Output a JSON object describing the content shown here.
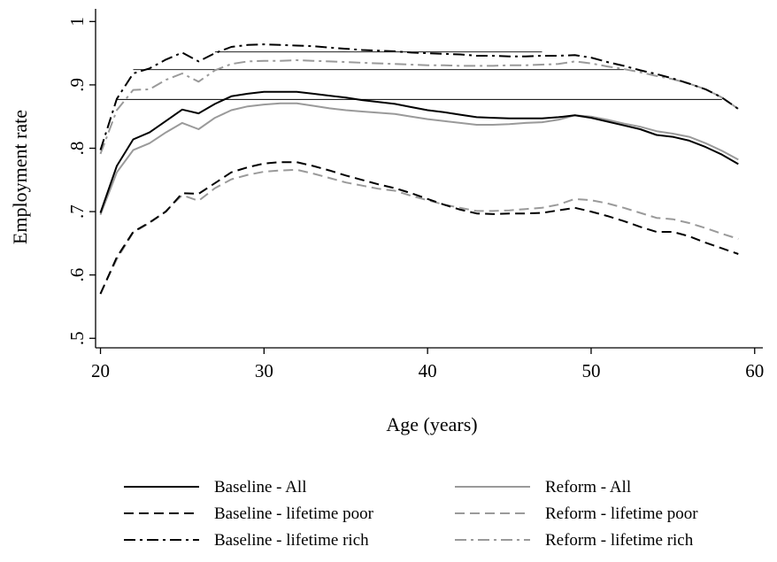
{
  "chart_data": {
    "type": "line",
    "title": "",
    "xlabel": "Age (years)",
    "ylabel": "Employment rate",
    "xlim": [
      19.7,
      60.5
    ],
    "ylim": [
      0.485,
      1.02
    ],
    "xticks": [
      20,
      30,
      40,
      50,
      60
    ],
    "xtick_labels": [
      "20",
      "30",
      "40",
      "50",
      "60"
    ],
    "yticks": [
      0.5,
      0.6,
      0.7,
      0.8,
      0.9,
      1.0
    ],
    "ytick_labels": [
      ".5",
      ".6",
      ".7",
      ".8",
      ".9",
      "1"
    ],
    "grid": false,
    "legend_position": "bottom",
    "x": [
      20,
      21,
      22,
      23,
      24,
      25,
      26,
      27,
      28,
      29,
      30,
      31,
      32,
      33,
      34,
      35,
      36,
      37,
      38,
      39,
      40,
      41,
      42,
      43,
      44,
      45,
      46,
      47,
      48,
      49,
      50,
      51,
      52,
      53,
      54,
      55,
      56,
      57,
      58,
      59
    ],
    "series": [
      {
        "name": "Baseline - All",
        "color": "#000000",
        "dash": "solid",
        "values": [
          0.698,
          0.772,
          0.814,
          0.825,
          0.843,
          0.861,
          0.855,
          0.87,
          0.882,
          0.886,
          0.889,
          0.889,
          0.889,
          0.886,
          0.883,
          0.88,
          0.876,
          0.873,
          0.87,
          0.865,
          0.86,
          0.857,
          0.853,
          0.849,
          0.848,
          0.847,
          0.847,
          0.847,
          0.849,
          0.852,
          0.848,
          0.842,
          0.836,
          0.83,
          0.821,
          0.818,
          0.812,
          0.802,
          0.79,
          0.775
        ]
      },
      {
        "name": "Baseline - lifetime poor",
        "color": "#000000",
        "dash": "dashed",
        "values": [
          0.57,
          0.628,
          0.668,
          0.683,
          0.7,
          0.729,
          0.728,
          0.745,
          0.762,
          0.77,
          0.776,
          0.778,
          0.778,
          0.772,
          0.765,
          0.757,
          0.75,
          0.743,
          0.737,
          0.729,
          0.72,
          0.711,
          0.703,
          0.697,
          0.696,
          0.697,
          0.697,
          0.698,
          0.702,
          0.706,
          0.7,
          0.693,
          0.685,
          0.676,
          0.668,
          0.668,
          0.661,
          0.651,
          0.642,
          0.633
        ]
      },
      {
        "name": "Baseline - lifetime rich",
        "color": "#000000",
        "dash": "dashdot",
        "values": [
          0.797,
          0.878,
          0.918,
          0.926,
          0.94,
          0.951,
          0.937,
          0.95,
          0.96,
          0.963,
          0.964,
          0.963,
          0.962,
          0.961,
          0.959,
          0.957,
          0.955,
          0.954,
          0.953,
          0.951,
          0.95,
          0.949,
          0.948,
          0.946,
          0.946,
          0.945,
          0.945,
          0.946,
          0.946,
          0.947,
          0.943,
          0.936,
          0.93,
          0.923,
          0.917,
          0.91,
          0.902,
          0.893,
          0.88,
          0.862
        ]
      },
      {
        "name": "Reform - All",
        "color": "#9a9a9a",
        "dash": "solid",
        "values": [
          0.695,
          0.762,
          0.797,
          0.808,
          0.825,
          0.84,
          0.83,
          0.848,
          0.86,
          0.866,
          0.869,
          0.871,
          0.871,
          0.867,
          0.863,
          0.86,
          0.858,
          0.856,
          0.854,
          0.85,
          0.846,
          0.843,
          0.84,
          0.837,
          0.837,
          0.838,
          0.84,
          0.841,
          0.845,
          0.852,
          0.85,
          0.845,
          0.839,
          0.834,
          0.827,
          0.823,
          0.818,
          0.808,
          0.796,
          0.782
        ]
      },
      {
        "name": "Reform - lifetime poor",
        "color": "#9a9a9a",
        "dash": "dashed",
        "values": [
          0.571,
          0.625,
          0.667,
          0.682,
          0.701,
          0.726,
          0.717,
          0.737,
          0.751,
          0.758,
          0.763,
          0.765,
          0.766,
          0.76,
          0.753,
          0.746,
          0.741,
          0.736,
          0.733,
          0.725,
          0.718,
          0.711,
          0.706,
          0.701,
          0.701,
          0.702,
          0.704,
          0.706,
          0.711,
          0.72,
          0.718,
          0.713,
          0.706,
          0.698,
          0.69,
          0.688,
          0.682,
          0.674,
          0.665,
          0.657
        ]
      },
      {
        "name": "Reform - lifetime rich",
        "color": "#9a9a9a",
        "dash": "dashdot",
        "values": [
          0.791,
          0.86,
          0.892,
          0.893,
          0.908,
          0.918,
          0.905,
          0.923,
          0.933,
          0.937,
          0.938,
          0.938,
          0.939,
          0.938,
          0.937,
          0.936,
          0.935,
          0.934,
          0.933,
          0.932,
          0.931,
          0.931,
          0.93,
          0.93,
          0.93,
          0.931,
          0.931,
          0.932,
          0.933,
          0.937,
          0.934,
          0.929,
          0.925,
          0.92,
          0.914,
          0.909,
          0.902,
          0.893,
          0.88,
          0.862
        ]
      }
    ],
    "reference_lines": [
      {
        "y": 0.877,
        "x_from": 21,
        "x_to": 58
      },
      {
        "y": 0.924,
        "x_from": 22,
        "x_to": 52
      },
      {
        "y": 0.952,
        "x_from": 27,
        "x_to": 47
      }
    ],
    "legend": [
      {
        "label": "Baseline - All",
        "color": "#000000",
        "dash": "solid"
      },
      {
        "label": "Reform - All",
        "color": "#9a9a9a",
        "dash": "solid"
      },
      {
        "label": "Baseline - lifetime poor",
        "color": "#000000",
        "dash": "dashed"
      },
      {
        "label": "Reform - lifetime poor",
        "color": "#9a9a9a",
        "dash": "dashed"
      },
      {
        "label": "Baseline - lifetime rich",
        "color": "#000000",
        "dash": "dashdot"
      },
      {
        "label": "Reform - lifetime rich",
        "color": "#9a9a9a",
        "dash": "dashdot"
      }
    ]
  }
}
